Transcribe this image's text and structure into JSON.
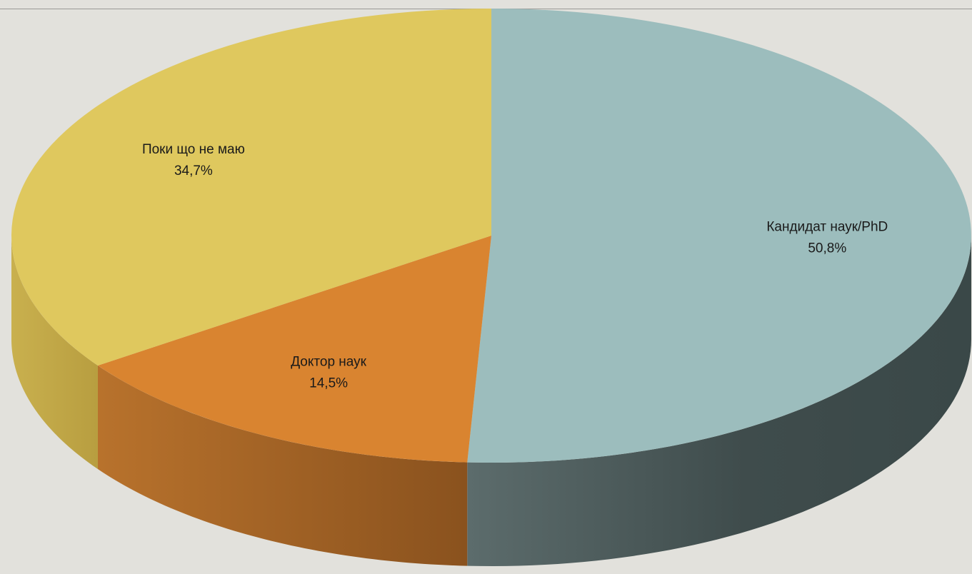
{
  "chart_data": {
    "type": "pie",
    "style": "3d",
    "categories": [
      "Кандидат наук/PhD",
      "Доктор наук",
      "Поки що не маю"
    ],
    "values": [
      50.8,
      14.5,
      34.7
    ],
    "labels": [
      "50,8%",
      "14,5%",
      "34,7%"
    ],
    "colors": [
      "#9cbdbd",
      "#d98430",
      "#dfc85e"
    ],
    "legend": "none"
  }
}
